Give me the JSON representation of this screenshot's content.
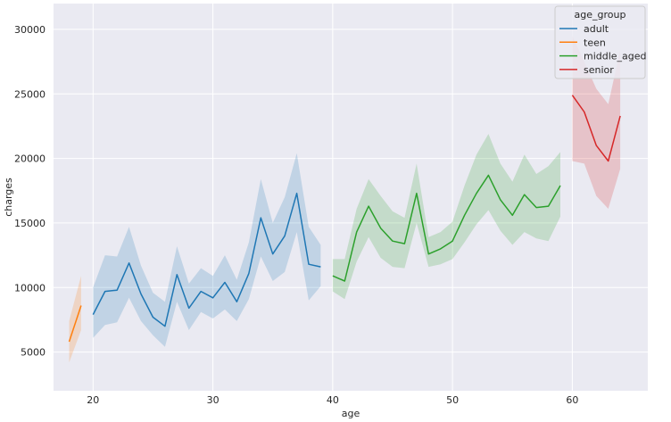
{
  "chart_data": {
    "type": "line",
    "title": "",
    "xlabel": "age",
    "ylabel": "charges",
    "xlim": [
      16.7,
      66.3
    ],
    "ylim": [
      2000,
      32000
    ],
    "x_ticks": [
      20,
      30,
      40,
      50,
      60
    ],
    "y_ticks": [
      5000,
      10000,
      15000,
      20000,
      25000,
      30000
    ],
    "grid": true,
    "background": "#eaeaf2",
    "legend": {
      "title": "age_group",
      "placement": "top-right"
    },
    "series": [
      {
        "name": "adult",
        "color": "#1f77b4",
        "x": [
          20,
          21,
          22,
          23,
          24,
          25,
          26,
          27,
          28,
          29,
          30,
          31,
          32,
          33,
          34,
          35,
          36,
          37,
          38,
          39
        ],
        "y": [
          7900,
          9700,
          9800,
          11900,
          9500,
          7700,
          7000,
          11000,
          8400,
          9700,
          9200,
          10400,
          8900,
          11100,
          15400,
          12600,
          14000,
          17300,
          11800,
          11600
        ],
        "ci_low": [
          6100,
          7100,
          7300,
          9200,
          7400,
          6300,
          5400,
          8900,
          6700,
          8100,
          7600,
          8300,
          7400,
          9100,
          12400,
          10500,
          11200,
          14300,
          9000,
          10100
        ],
        "ci_high": [
          10000,
          12500,
          12400,
          14700,
          11700,
          9600,
          8900,
          13200,
          10300,
          11500,
          10900,
          12500,
          10600,
          13500,
          18400,
          15000,
          17000,
          20400,
          14700,
          13300
        ]
      },
      {
        "name": "teen",
        "color": "#ff7f0e",
        "x": [
          18,
          19
        ],
        "y": [
          5800,
          8600
        ],
        "ci_low": [
          4200,
          6700
        ],
        "ci_high": [
          7400,
          10900
        ]
      },
      {
        "name": "middle_aged",
        "color": "#2ca02c",
        "x": [
          40,
          41,
          42,
          43,
          44,
          45,
          46,
          47,
          48,
          49,
          50,
          51,
          52,
          53,
          54,
          55,
          56,
          57,
          58,
          59
        ],
        "y": [
          10900,
          10500,
          14300,
          16300,
          14600,
          13600,
          13400,
          17300,
          12600,
          13000,
          13600,
          15600,
          17300,
          18700,
          16800,
          15600,
          17200,
          16200,
          16300,
          17900
        ],
        "ci_low": [
          9700,
          9100,
          12000,
          13900,
          12300,
          11600,
          11500,
          15000,
          11600,
          11800,
          12200,
          13500,
          14900,
          16000,
          14400,
          13300,
          14300,
          13800,
          13600,
          15500
        ],
        "ci_high": [
          12200,
          12200,
          16100,
          18400,
          17100,
          15900,
          15400,
          19600,
          13900,
          14300,
          15100,
          17900,
          20300,
          21900,
          19600,
          18200,
          20300,
          18800,
          19400,
          20500
        ]
      },
      {
        "name": "senior",
        "color": "#d62728",
        "x": [
          60,
          61,
          62,
          63,
          64
        ],
        "y": [
          24900,
          23600,
          21000,
          19800,
          23300
        ],
        "ci_low": [
          19800,
          19600,
          17100,
          16100,
          19200
        ],
        "ci_high": [
          29500,
          27500,
          25400,
          24200,
          28400
        ]
      }
    ]
  }
}
